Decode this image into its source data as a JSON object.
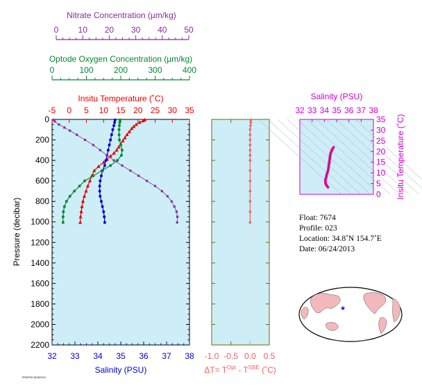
{
  "colors": {
    "plot_bg": "#cdeef7",
    "temperature": "#e60000",
    "salinity": "#0000cc",
    "oxygen": "#008a2e",
    "nitrate": "#8a2a9a",
    "delta_t": "#f06060",
    "ts_panel": "#cc00cc",
    "ts_curve": "#e61ea0",
    "axis_pressure": "#000000",
    "ocean": "#ffffff",
    "land": "#f2b8bc",
    "float_marker": "#0000ff"
  },
  "info": {
    "float": "Float:  7674",
    "profile": "Profile:  023",
    "location": "Location:  34.8˚N  154.7˚E",
    "date": "Date:  06/24/2013"
  },
  "footer_text": "PRINTED 06/25/2013",
  "chart_data": [
    {
      "id": "main_profile",
      "type": "line",
      "ylabel": "Pressure (decibar)",
      "ylim": [
        2200,
        0
      ],
      "yticks": [
        0,
        200,
        400,
        600,
        800,
        1000,
        1200,
        1400,
        1600,
        1800,
        2000,
        2200
      ],
      "axes": {
        "temperature": {
          "label": "Insitu Temperature (˚C)",
          "range": [
            -5,
            35
          ],
          "ticks": [
            -5,
            0,
            5,
            10,
            15,
            20,
            25,
            30,
            35
          ]
        },
        "salinity": {
          "label": "Salinity (PSU)",
          "range": [
            32,
            38
          ],
          "ticks": [
            32,
            33,
            34,
            35,
            36,
            37,
            38
          ]
        },
        "oxygen": {
          "label": "Optode Oxygen Concentration (µm/kg)",
          "range": [
            0,
            400
          ],
          "ticks": [
            0,
            100,
            200,
            300,
            400
          ]
        },
        "nitrate": {
          "label": "Nitrate Concentration (µm/kg)",
          "range": [
            0,
            50
          ],
          "ticks": [
            0,
            10,
            20,
            30,
            40,
            50
          ]
        }
      },
      "series": [
        {
          "name": "Insitu Temperature",
          "axis": "temperature",
          "points": [
            [
              22.0,
              5
            ],
            [
              21.5,
              15
            ],
            [
              20.5,
              30
            ],
            [
              19.5,
              50
            ],
            [
              18.8,
              70
            ],
            [
              18.2,
              90
            ],
            [
              17.5,
              120
            ],
            [
              16.8,
              150
            ],
            [
              16.2,
              180
            ],
            [
              15.6,
              210
            ],
            [
              15.0,
              240
            ],
            [
              14.4,
              270
            ],
            [
              13.8,
              300
            ],
            [
              13.0,
              330
            ],
            [
              12.0,
              360
            ],
            [
              11.0,
              390
            ],
            [
              10.0,
              420
            ],
            [
              8.5,
              460
            ],
            [
              7.3,
              500
            ],
            [
              6.6,
              550
            ],
            [
              6.0,
              600
            ],
            [
              5.4,
              650
            ],
            [
              4.9,
              700
            ],
            [
              4.4,
              750
            ],
            [
              4.0,
              800
            ],
            [
              3.7,
              850
            ],
            [
              3.5,
              900
            ],
            [
              3.3,
              950
            ],
            [
              3.2,
              1005
            ]
          ]
        },
        {
          "name": "Salinity",
          "axis": "salinity",
          "points": [
            [
              34.75,
              5
            ],
            [
              34.73,
              30
            ],
            [
              34.7,
              60
            ],
            [
              34.65,
              100
            ],
            [
              34.6,
              150
            ],
            [
              34.55,
              200
            ],
            [
              34.5,
              250
            ],
            [
              34.45,
              300
            ],
            [
              34.4,
              350
            ],
            [
              34.35,
              400
            ],
            [
              34.3,
              450
            ],
            [
              34.2,
              500
            ],
            [
              34.15,
              550
            ],
            [
              34.1,
              600
            ],
            [
              34.08,
              650
            ],
            [
              34.08,
              700
            ],
            [
              34.1,
              750
            ],
            [
              34.15,
              800
            ],
            [
              34.2,
              850
            ],
            [
              34.25,
              900
            ],
            [
              34.28,
              950
            ],
            [
              34.3,
              1005
            ]
          ]
        },
        {
          "name": "Optode Oxygen Concentration",
          "axis": "oxygen",
          "points": [
            [
              198,
              5
            ],
            [
              197,
              30
            ],
            [
              196,
              60
            ],
            [
              195,
              100
            ],
            [
              195,
              150
            ],
            [
              196,
              200
            ],
            [
              200,
              250
            ],
            [
              204,
              300
            ],
            [
              202,
              350
            ],
            [
              190,
              400
            ],
            [
              170,
              450
            ],
            [
              145,
              500
            ],
            [
              120,
              550
            ],
            [
              95,
              600
            ],
            [
              80,
              650
            ],
            [
              65,
              700
            ],
            [
              52,
              750
            ],
            [
              42,
              800
            ],
            [
              36,
              850
            ],
            [
              33,
              900
            ],
            [
              32,
              950
            ],
            [
              32,
              1005
            ]
          ]
        },
        {
          "name": "Nitrate Concentration",
          "axis": "nitrate",
          "points": [
            [
              0.5,
              5
            ],
            [
              1.0,
              20
            ],
            [
              2.5,
              50
            ],
            [
              4.5,
              80
            ],
            [
              6.5,
              110
            ],
            [
              9.0,
              150
            ],
            [
              12.0,
              200
            ],
            [
              15.0,
              250
            ],
            [
              17.5,
              300
            ],
            [
              20.0,
              350
            ],
            [
              22.5,
              400
            ],
            [
              25.5,
              450
            ],
            [
              28.5,
              500
            ],
            [
              31.5,
              550
            ],
            [
              34.5,
              600
            ],
            [
              37.5,
              650
            ],
            [
              40.0,
              700
            ],
            [
              42.0,
              750
            ],
            [
              43.5,
              800
            ],
            [
              44.5,
              850
            ],
            [
              45.3,
              900
            ],
            [
              45.6,
              950
            ],
            [
              45.5,
              1005
            ]
          ]
        }
      ]
    },
    {
      "id": "delta_t_profile",
      "type": "line",
      "xlabel": "ΔT= T",
      "xlabel_sup1": "Opt",
      "xlabel_mid": " - T",
      "xlabel_sup2": "SBE",
      "xlabel_end": " (˚C)",
      "xlim": [
        -1.0,
        0.5
      ],
      "xticks": [
        -1.0,
        -0.5,
        0.0,
        0.5
      ],
      "xtick_labels": [
        "-1.0",
        "-0.5",
        "0.0",
        "0.5"
      ],
      "ylim": [
        2200,
        0
      ],
      "series": [
        {
          "name": "ΔT",
          "points": [
            [
              0.02,
              5
            ],
            [
              0.02,
              30
            ],
            [
              0.01,
              60
            ],
            [
              0.0,
              100
            ],
            [
              0.0,
              150
            ],
            [
              0.0,
              200
            ],
            [
              0.0,
              250
            ],
            [
              0.0,
              300
            ],
            [
              0.0,
              350
            ],
            [
              0.0,
              400
            ],
            [
              0.0,
              500
            ],
            [
              0.0,
              600
            ],
            [
              0.0,
              700
            ],
            [
              0.0,
              800
            ],
            [
              0.0,
              900
            ],
            [
              0.0,
              1005
            ]
          ]
        }
      ]
    },
    {
      "id": "ts_diagram",
      "type": "line",
      "xlabel": "Salinity (PSU)",
      "ylabel": "Insitu Temperature (˚C)",
      "xlim": [
        32,
        38
      ],
      "ylim": [
        0,
        35
      ],
      "xticks": [
        32,
        33,
        34,
        35,
        36,
        37,
        38
      ],
      "yticks": [
        0,
        5,
        10,
        15,
        20,
        25,
        30,
        35
      ],
      "series": [
        {
          "name": "T-S",
          "points": [
            [
              34.75,
              22
            ],
            [
              34.6,
              20.5
            ],
            [
              34.5,
              19
            ],
            [
              34.45,
              17
            ],
            [
              34.4,
              15
            ],
            [
              34.35,
              13
            ],
            [
              34.3,
              11
            ],
            [
              34.2,
              9.5
            ],
            [
              34.15,
              8
            ],
            [
              34.08,
              6.5
            ],
            [
              34.1,
              5
            ],
            [
              34.2,
              4
            ],
            [
              34.3,
              3.3
            ]
          ]
        }
      ]
    }
  ]
}
